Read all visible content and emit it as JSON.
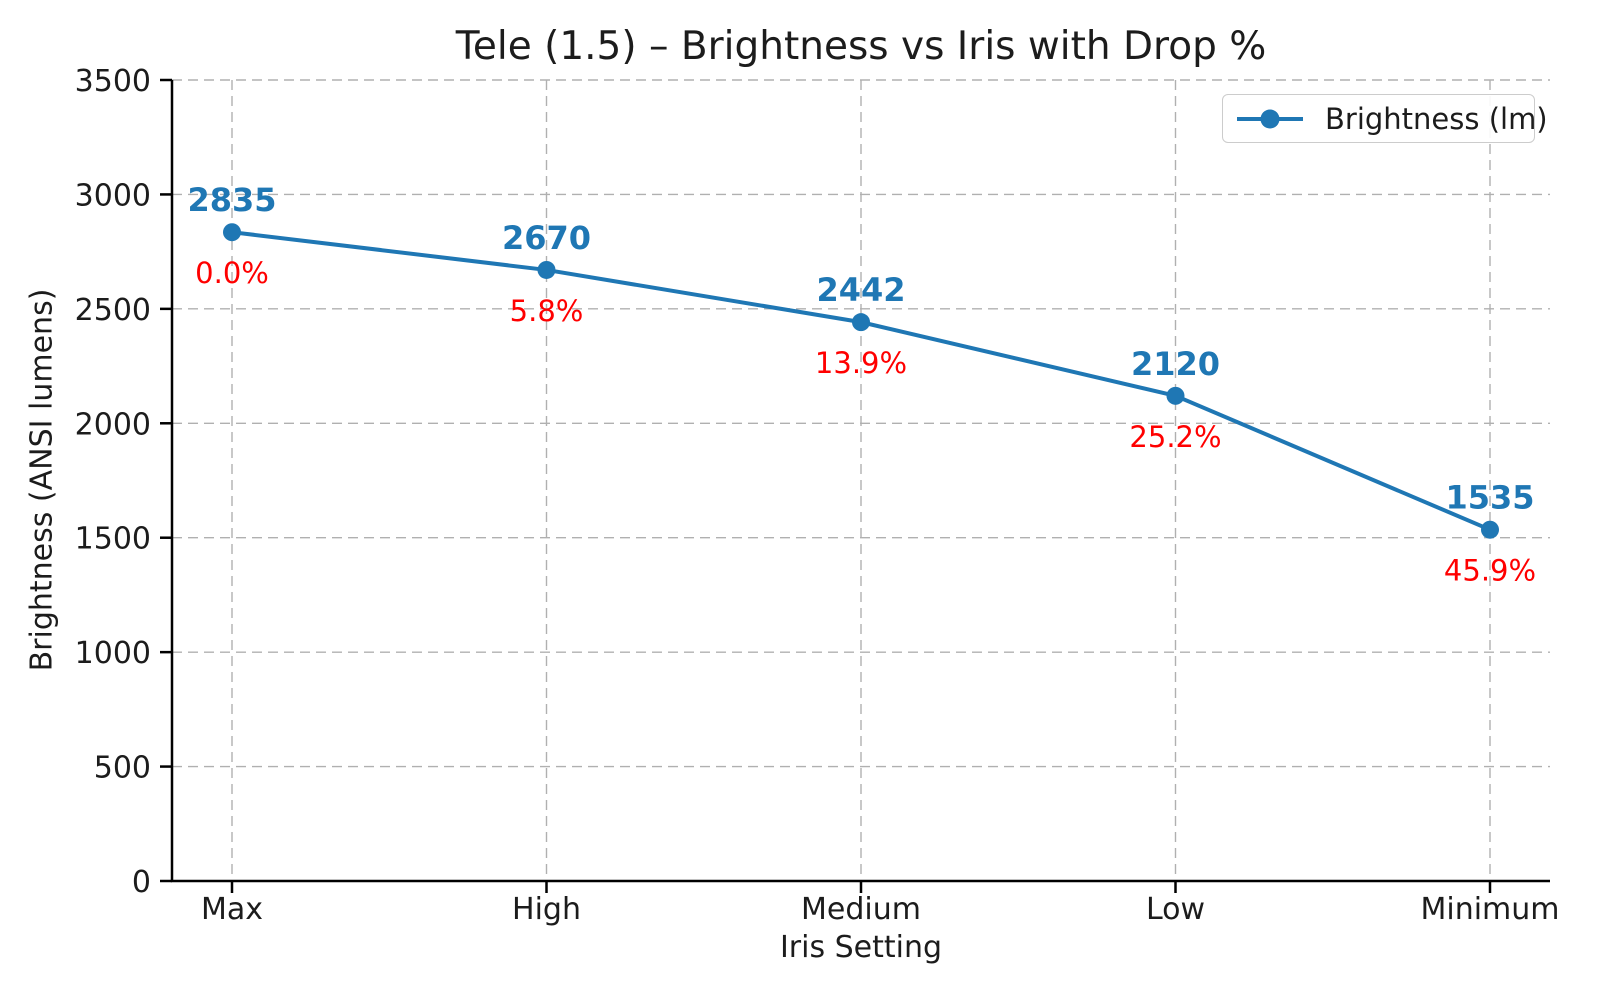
{
  "chart_data": {
    "type": "line",
    "title": "Tele (1.5) – Brightness vs Iris with Drop %",
    "xlabel": "Iris Setting",
    "ylabel": "Brightness (ANSI lumens)",
    "categories": [
      "Max",
      "High",
      "Medium",
      "Low",
      "Minimum"
    ],
    "series": [
      {
        "name": "Brightness (lm)",
        "values": [
          2835,
          2670,
          2442,
          2120,
          1535
        ]
      }
    ],
    "value_labels": [
      "2835",
      "2670",
      "2442",
      "2120",
      "1535"
    ],
    "drop_percent_labels": [
      "0.0%",
      "5.8%",
      "13.9%",
      "25.2%",
      "45.9%"
    ],
    "ylim": [
      0,
      3500
    ],
    "yticks": [
      0,
      500,
      1000,
      1500,
      2000,
      2500,
      3000,
      3500
    ],
    "grid": "dashed, both axes",
    "legend_position": "upper right",
    "colors": {
      "line": "#1f77b4",
      "marker": "#1f77b4",
      "value_label": "#1f77b4",
      "drop_label": "#ff0000",
      "grid": "#b0b0b0",
      "axis": "#000000",
      "text": "#1c1c1c",
      "legend_border": "#cccccc",
      "background": "#ffffff"
    }
  }
}
